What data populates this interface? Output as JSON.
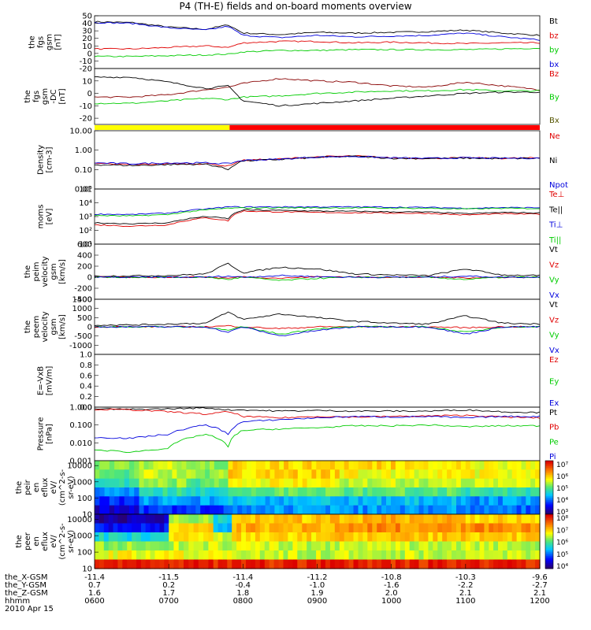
{
  "title": "P4 (TH-E) fields and on-board moments overview",
  "date": "2010 Apr 15",
  "chart_data": [
    {
      "type": "line",
      "ylabel": [
        "the",
        "fgs",
        "gsm",
        "[nT]"
      ],
      "ylim": [
        -20,
        50
      ],
      "yticks": [
        -20,
        -10,
        0,
        10,
        20,
        30,
        40,
        50
      ],
      "legend": [
        {
          "name": "Bt",
          "color": "#000000"
        },
        {
          "name": "bz",
          "color": "#e00000"
        },
        {
          "name": "by",
          "color": "#00cc00"
        },
        {
          "name": "bx",
          "color": "#0000dd"
        }
      ],
      "x": [
        6.0,
        6.5,
        7.0,
        7.5,
        7.8,
        8.0,
        8.5,
        9.0,
        9.5,
        10.0,
        10.5,
        11.0,
        11.5,
        12.0
      ],
      "series": [
        {
          "name": "Bt",
          "color": "#000000",
          "values": [
            42,
            41,
            35,
            32,
            38,
            27,
            25,
            28,
            27,
            28,
            29,
            31,
            27,
            24
          ]
        },
        {
          "name": "bz",
          "color": "#e00000",
          "values": [
            6,
            6,
            8,
            10,
            8,
            14,
            16,
            16,
            14,
            15,
            14,
            13,
            14,
            14
          ]
        },
        {
          "name": "by",
          "color": "#00cc00",
          "values": [
            -4,
            -4,
            -3,
            -2,
            -1,
            2,
            4,
            4,
            5,
            5,
            5,
            5,
            6,
            7
          ]
        },
        {
          "name": "bx",
          "color": "#0000dd",
          "values": [
            41,
            40,
            34,
            31,
            36,
            24,
            21,
            24,
            22,
            23,
            24,
            27,
            22,
            18
          ]
        }
      ]
    },
    {
      "type": "line",
      "ylabel": [
        "the",
        "fgs",
        "gsm",
        "-DC",
        "[nT]"
      ],
      "ylim": [
        -25,
        20
      ],
      "yticks": [
        -20,
        -10,
        0,
        10
      ],
      "legend": [
        {
          "name": "Bz",
          "color": "#e00000"
        },
        {
          "name": "By",
          "color": "#00cc00"
        },
        {
          "name": "Bx",
          "color": "#555500"
        }
      ],
      "x": [
        6.0,
        6.5,
        7.0,
        7.5,
        7.8,
        8.0,
        8.5,
        9.0,
        9.5,
        10.0,
        10.5,
        11.0,
        11.5,
        12.0
      ],
      "series": [
        {
          "name": "Bz",
          "color": "#880000",
          "values": [
            -3,
            -3,
            -1,
            3,
            5,
            8,
            12,
            10,
            9,
            6,
            5,
            9,
            6,
            3
          ]
        },
        {
          "name": "By",
          "color": "#00cc00",
          "values": [
            -8,
            -8,
            -6,
            -4,
            -5,
            -3,
            -2,
            0,
            1,
            2,
            2,
            3,
            2,
            2
          ]
        },
        {
          "name": "Bx",
          "color": "#000000",
          "values": [
            13,
            13,
            9,
            4,
            6,
            -6,
            -10,
            -8,
            -6,
            -4,
            -2,
            0,
            1,
            1
          ]
        }
      ]
    },
    {
      "type": "line",
      "ylabel": [
        "Density",
        "[cm-3]"
      ],
      "yscale": "log",
      "ylim": [
        0.01,
        10
      ],
      "yticks": [
        "0.01",
        "0.10",
        "1.00",
        "10.00"
      ],
      "legend": [
        {
          "name": "Ne",
          "color": "#e00000"
        },
        {
          "name": "Ni",
          "color": "#000000"
        },
        {
          "name": "Npot",
          "color": "#0000dd"
        }
      ],
      "x": [
        6.0,
        6.5,
        7.0,
        7.5,
        7.8,
        8.0,
        8.5,
        9.0,
        9.5,
        10.0,
        10.5,
        11.0,
        11.5,
        12.0
      ],
      "series": [
        {
          "name": "Ne",
          "color": "#e00000",
          "values": [
            0.2,
            0.18,
            0.2,
            0.2,
            0.15,
            0.3,
            0.35,
            0.45,
            0.5,
            0.4,
            0.38,
            0.4,
            0.38,
            0.4
          ]
        },
        {
          "name": "Ni",
          "color": "#000000",
          "values": [
            0.18,
            0.16,
            0.18,
            0.19,
            0.1,
            0.28,
            0.33,
            0.42,
            0.48,
            0.38,
            0.37,
            0.39,
            0.37,
            0.38
          ]
        },
        {
          "name": "Npot",
          "color": "#0000dd",
          "values": [
            0.22,
            0.2,
            0.22,
            0.22,
            0.2,
            0.3,
            0.34,
            0.44,
            0.48,
            0.4,
            0.38,
            0.4,
            0.38,
            0.39
          ]
        }
      ]
    },
    {
      "type": "line",
      "ylabel": [
        "moms",
        "[eV]"
      ],
      "yscale": "log",
      "ylim": [
        10,
        100000
      ],
      "yticks": [
        "10¹",
        "10²",
        "10³",
        "10⁴",
        "10⁵"
      ],
      "legend": [
        {
          "name": "Te⊥",
          "color": "#e00000"
        },
        {
          "name": "Te||",
          "color": "#000000"
        },
        {
          "name": "Ti⊥",
          "color": "#0000dd"
        },
        {
          "name": "Ti||",
          "color": "#00cc00"
        }
      ],
      "x": [
        6.0,
        6.5,
        7.0,
        7.5,
        7.8,
        8.0,
        8.5,
        9.0,
        9.5,
        10.0,
        10.5,
        11.0,
        11.5,
        12.0
      ],
      "series": [
        {
          "name": "Te⊥",
          "color": "#e00000",
          "values": [
            250,
            200,
            250,
            800,
            500,
            2500,
            2200,
            2000,
            1900,
            1800,
            1700,
            1300,
            1600,
            1500
          ]
        },
        {
          "name": "Te||",
          "color": "#000000",
          "values": [
            350,
            300,
            350,
            1000,
            700,
            3000,
            2800,
            2500,
            2400,
            2200,
            2100,
            1600,
            2000,
            1800
          ]
        },
        {
          "name": "Ti⊥",
          "color": "#0000dd",
          "values": [
            1500,
            1400,
            1800,
            3500,
            5000,
            5000,
            5000,
            5000,
            5000,
            4800,
            4600,
            4000,
            4500,
            4400
          ]
        },
        {
          "name": "Ti||",
          "color": "#00cc00",
          "values": [
            1200,
            1100,
            1400,
            3000,
            4000,
            4200,
            4300,
            4300,
            4300,
            4100,
            4000,
            3500,
            4000,
            3800
          ]
        }
      ]
    },
    {
      "type": "line",
      "ylabel": [
        "the",
        "peim",
        "velocity",
        "gsm",
        "[km/s]"
      ],
      "ylim": [
        -400,
        600
      ],
      "yticks": [
        -400,
        -200,
        0,
        200,
        400,
        600
      ],
      "legend": [
        {
          "name": "Vt",
          "color": "#000000"
        },
        {
          "name": "Vz",
          "color": "#e00000"
        },
        {
          "name": "Vy",
          "color": "#00cc00"
        },
        {
          "name": "Vx",
          "color": "#0000dd"
        }
      ],
      "x": [
        6.0,
        6.5,
        7.0,
        7.5,
        7.8,
        8.0,
        8.5,
        9.0,
        9.5,
        10.0,
        10.5,
        11.0,
        11.5,
        12.0
      ],
      "series": [
        {
          "name": "Vt",
          "color": "#000000",
          "values": [
            20,
            25,
            30,
            60,
            250,
            80,
            180,
            150,
            60,
            40,
            30,
            150,
            40,
            30
          ]
        },
        {
          "name": "Vz",
          "color": "#e00000",
          "values": [
            0,
            0,
            0,
            5,
            -20,
            10,
            -20,
            10,
            5,
            0,
            0,
            -10,
            0,
            0
          ]
        },
        {
          "name": "Vy",
          "color": "#00cc00",
          "values": [
            0,
            0,
            0,
            0,
            -40,
            0,
            -60,
            -20,
            0,
            0,
            0,
            -40,
            0,
            0
          ]
        },
        {
          "name": "Vx",
          "color": "#0000dd",
          "values": [
            0,
            0,
            0,
            0,
            20,
            0,
            30,
            10,
            0,
            0,
            0,
            20,
            0,
            0
          ]
        }
      ]
    },
    {
      "type": "line",
      "ylabel": [
        "the",
        "peem",
        "velocity",
        "gsm",
        "[km/s]"
      ],
      "ylim": [
        -1500,
        1500
      ],
      "yticks": [
        -1000,
        -500,
        0,
        500,
        1000,
        1500
      ],
      "legend": [
        {
          "name": "Vt",
          "color": "#000000"
        },
        {
          "name": "Vz",
          "color": "#e00000"
        },
        {
          "name": "Vy",
          "color": "#00cc00"
        },
        {
          "name": "Vx",
          "color": "#0000dd"
        }
      ],
      "x": [
        6.0,
        6.5,
        7.0,
        7.5,
        7.8,
        8.0,
        8.5,
        9.0,
        9.5,
        10.0,
        10.5,
        11.0,
        11.5,
        12.0
      ],
      "series": [
        {
          "name": "Vt",
          "color": "#000000",
          "values": [
            100,
            100,
            150,
            200,
            800,
            400,
            700,
            500,
            300,
            200,
            150,
            600,
            200,
            150
          ]
        },
        {
          "name": "Vz",
          "color": "#e00000",
          "values": [
            0,
            0,
            0,
            0,
            50,
            0,
            -100,
            0,
            0,
            0,
            0,
            -50,
            0,
            0
          ]
        },
        {
          "name": "Vy",
          "color": "#00cc00",
          "values": [
            0,
            0,
            0,
            0,
            -200,
            0,
            -400,
            -100,
            0,
            0,
            0,
            -300,
            0,
            0
          ]
        },
        {
          "name": "Vx",
          "color": "#0000dd",
          "values": [
            0,
            0,
            0,
            0,
            -300,
            0,
            -500,
            -200,
            0,
            0,
            0,
            -400,
            0,
            0
          ]
        }
      ]
    },
    {
      "type": "line",
      "ylabel": [
        "E=-VxB",
        "[mV/m]"
      ],
      "ylim": [
        0,
        1
      ],
      "yticks": [
        "0.0",
        "0.2",
        "0.4",
        "0.6",
        "0.8",
        "1.0"
      ],
      "legend": [
        {
          "name": "Ez",
          "color": "#e00000"
        },
        {
          "name": "Ey",
          "color": "#00cc00"
        },
        {
          "name": "Ex",
          "color": "#0000dd"
        }
      ],
      "series": []
    },
    {
      "type": "line",
      "ylabel": [
        "Pressure",
        "[nPa]"
      ],
      "yscale": "log",
      "ylim": [
        0.001,
        1
      ],
      "yticks": [
        "0.001",
        "0.010",
        "0.100",
        "1.000"
      ],
      "legend": [
        {
          "name": "Pt",
          "color": "#000000"
        },
        {
          "name": "Pb",
          "color": "#e00000"
        },
        {
          "name": "Pe",
          "color": "#00cc00"
        },
        {
          "name": "Pi",
          "color": "#0000dd"
        }
      ],
      "x": [
        6.0,
        6.5,
        7.0,
        7.5,
        7.8,
        8.0,
        8.5,
        9.0,
        9.5,
        10.0,
        10.5,
        11.0,
        11.5,
        12.0
      ],
      "series": [
        {
          "name": "Pt",
          "color": "#000000",
          "values": [
            0.8,
            0.75,
            0.8,
            0.9,
            0.7,
            0.7,
            0.6,
            0.65,
            0.6,
            0.6,
            0.6,
            0.7,
            0.55,
            0.5
          ]
        },
        {
          "name": "Pb",
          "color": "#e00000",
          "values": [
            0.75,
            0.7,
            0.55,
            0.4,
            0.55,
            0.3,
            0.25,
            0.3,
            0.28,
            0.3,
            0.32,
            0.35,
            0.28,
            0.25
          ]
        },
        {
          "name": "Pe",
          "color": "#00cc00",
          "values": [
            0.004,
            0.003,
            0.005,
            0.03,
            0.006,
            0.05,
            0.06,
            0.07,
            0.09,
            0.09,
            0.1,
            0.08,
            0.09,
            0.09
          ]
        },
        {
          "name": "Pi",
          "color": "#0000dd",
          "values": [
            0.02,
            0.018,
            0.03,
            0.1,
            0.03,
            0.15,
            0.2,
            0.25,
            0.3,
            0.28,
            0.3,
            0.25,
            0.3,
            0.3
          ]
        }
      ]
    },
    {
      "type": "heatmap",
      "ylabel": [
        "the",
        "peir",
        "en",
        "eflux",
        "eV/",
        "(cm^2-s-",
        "sr-eV)"
      ],
      "yscale": "log",
      "ylim": [
        10,
        20000
      ],
      "yticks": [
        "10",
        "100",
        "1000",
        "10000"
      ],
      "colorbar": [
        "10⁷",
        "10⁶",
        "10⁵",
        "10⁴",
        "10³"
      ],
      "columns": [
        {
          "x_end": 6.6,
          "bands": [
            0.55,
            0.5,
            0.45,
            0.3,
            0.2,
            0.1
          ]
        },
        {
          "x_end": 7.3,
          "bands": [
            0.6,
            0.6,
            0.55,
            0.45,
            0.3,
            0.2
          ]
        },
        {
          "x_end": 7.8,
          "bands": [
            0.55,
            0.55,
            0.5,
            0.4,
            0.3,
            0.2
          ]
        },
        {
          "x_end": 9.3,
          "bands": [
            0.7,
            0.7,
            0.65,
            0.5,
            0.35,
            0.3
          ]
        },
        {
          "x_end": 11.0,
          "bands": [
            0.7,
            0.65,
            0.6,
            0.5,
            0.35,
            0.3
          ]
        },
        {
          "x_end": 12.0,
          "bands": [
            0.65,
            0.65,
            0.6,
            0.45,
            0.3,
            0.25
          ]
        }
      ]
    },
    {
      "type": "heatmap",
      "ylabel": [
        "the",
        "peer",
        "en",
        "eflux",
        "eV/",
        "(cm^2-s-",
        "sr-eV)"
      ],
      "yscale": "log",
      "ylim": [
        10,
        20000
      ],
      "yticks": [
        "10",
        "100",
        "1000",
        "10000"
      ],
      "colorbar": [
        "10⁸",
        "10⁷",
        "10⁶",
        "10⁵",
        "10⁴"
      ],
      "columns": [
        {
          "x_end": 7.0,
          "bands": [
            0.05,
            0.15,
            0.4,
            0.55,
            0.65,
            0.95
          ]
        },
        {
          "x_end": 7.6,
          "bands": [
            0.55,
            0.7,
            0.7,
            0.6,
            0.65,
            0.95
          ]
        },
        {
          "x_end": 7.85,
          "bands": [
            0.4,
            0.35,
            0.6,
            0.6,
            0.65,
            0.95
          ]
        },
        {
          "x_end": 9.3,
          "bands": [
            0.72,
            0.75,
            0.7,
            0.6,
            0.6,
            0.95
          ]
        },
        {
          "x_end": 11.0,
          "bands": [
            0.75,
            0.8,
            0.72,
            0.6,
            0.6,
            0.95
          ]
        },
        {
          "x_end": 12.0,
          "bands": [
            0.7,
            0.8,
            0.72,
            0.6,
            0.6,
            0.95
          ]
        }
      ]
    }
  ],
  "xaxis": {
    "range": [
      6.0,
      12.0
    ],
    "row_labels": [
      "the_X-GSM",
      "the_Y-GSM",
      "the_Z-GSM",
      "hhmm"
    ],
    "ticks": [
      {
        "x": 6.0,
        "vals": [
          "-11.4",
          "0.7",
          "1.6",
          "0600"
        ]
      },
      {
        "x": 7.0,
        "vals": [
          "-11.5",
          "0.2",
          "1.7",
          "0700"
        ]
      },
      {
        "x": 8.0,
        "vals": [
          "-11.4",
          "-0.4",
          "1.8",
          "0800"
        ]
      },
      {
        "x": 9.0,
        "vals": [
          "-11.2",
          "-1.0",
          "1.9",
          "0900"
        ]
      },
      {
        "x": 10.0,
        "vals": [
          "-10.8",
          "-1.6",
          "2.0",
          "1000"
        ]
      },
      {
        "x": 11.0,
        "vals": [
          "-10.3",
          "-2.2",
          "2.1",
          "1100"
        ]
      },
      {
        "x": 12.0,
        "vals": [
          "-9.6",
          "-2.7",
          "2.1",
          "1200"
        ]
      }
    ]
  },
  "mode_bar": [
    {
      "from": 6.0,
      "to": 7.82,
      "color": "#ffff00"
    },
    {
      "from": 7.82,
      "to": 12.0,
      "color": "#ff0000"
    }
  ]
}
